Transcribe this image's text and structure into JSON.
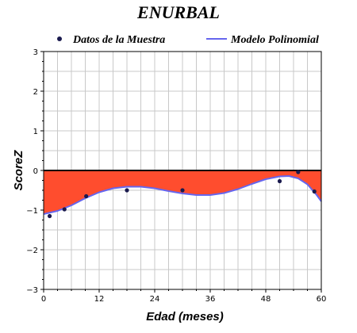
{
  "chart_data": {
    "type": "line",
    "title": "ENURBAL",
    "xlabel": "Edad (meses)",
    "ylabel": "ScoreZ",
    "xlim": [
      0,
      60
    ],
    "ylim": [
      -3,
      3
    ],
    "x_ticks": [
      "0",
      "12",
      "24",
      "36",
      "48",
      "60"
    ],
    "y_ticks": [
      "−3",
      "−2",
      "−1",
      "0",
      "1",
      "2",
      "3"
    ],
    "grid": true,
    "legend_placement": "top",
    "colors": {
      "points": "#1a1a4e",
      "curve": "#6666ee",
      "fill": "#ff4d2e",
      "grid": "#c8c8c8"
    },
    "series": [
      {
        "name": "Datos de la Muestra",
        "kind": "scatter",
        "x": [
          1.3,
          4.5,
          9.2,
          18.0,
          30.0,
          51.0,
          55.0,
          58.5
        ],
        "y": [
          -1.15,
          -0.98,
          -0.65,
          -0.5,
          -0.5,
          -0.27,
          -0.04,
          -0.53
        ]
      },
      {
        "name": "Modelo Polinomial",
        "kind": "line",
        "x": [
          0,
          3,
          6,
          9,
          12,
          15,
          18,
          21,
          24,
          27,
          30,
          33,
          36,
          39,
          42,
          45,
          48,
          51,
          53,
          55,
          57,
          59,
          60
        ],
        "y": [
          -1.1,
          -1.02,
          -0.88,
          -0.7,
          -0.55,
          -0.45,
          -0.41,
          -0.41,
          -0.45,
          -0.52,
          -0.58,
          -0.62,
          -0.62,
          -0.57,
          -0.47,
          -0.34,
          -0.22,
          -0.15,
          -0.14,
          -0.2,
          -0.35,
          -0.62,
          -0.78
        ]
      }
    ]
  }
}
